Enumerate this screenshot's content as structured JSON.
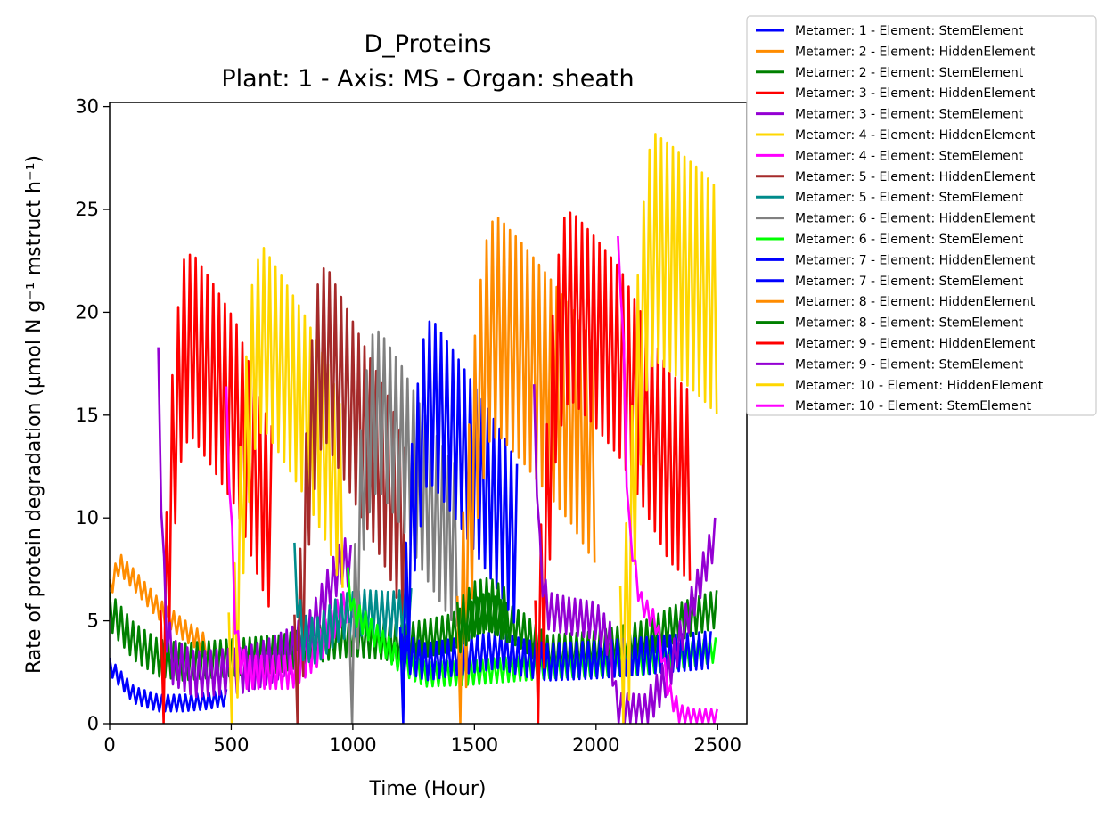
{
  "chart_data": {
    "type": "line",
    "title_line1": "D_Proteins",
    "title_line2": "Plant: 1 - Axis: MS - Organ: sheath",
    "xlabel": "Time (Hour)",
    "ylabel": "Rate of protein degradation (µmol N g⁻¹ mstruct h⁻¹)",
    "xlim": [
      0,
      2620
    ],
    "ylim": [
      0,
      30.2
    ],
    "xticks": [
      0,
      500,
      1000,
      1500,
      2000,
      2500
    ],
    "yticks": [
      0,
      5,
      10,
      15,
      20,
      25,
      30
    ],
    "legend_position": "outside-top-right",
    "series": [
      {
        "name": "Metamer: 1 - Element: StemElement",
        "color": "#0000ff",
        "start": 0,
        "end": 490,
        "amp": 0.4,
        "points": [
          [
            0,
            2.8
          ],
          [
            100,
            1.4
          ],
          [
            200,
            1.0
          ],
          [
            300,
            1.0
          ],
          [
            400,
            1.1
          ],
          [
            490,
            1.3
          ]
        ]
      },
      {
        "name": "Metamer: 2 - Element: HiddenElement",
        "color": "#ff8c00",
        "start": 0,
        "end": 400,
        "amp": 0.5,
        "points": [
          [
            0,
            6.5
          ],
          [
            40,
            7.8
          ],
          [
            100,
            7.0
          ],
          [
            200,
            5.6
          ],
          [
            300,
            4.6
          ],
          [
            400,
            3.8
          ]
        ]
      },
      {
        "name": "Metamer: 2 - Element: StemElement",
        "color": "#008000",
        "start": 0,
        "end": 2500,
        "amp": 0.9,
        "points": [
          [
            0,
            5.5
          ],
          [
            100,
            4.0
          ],
          [
            200,
            3.2
          ],
          [
            300,
            3.0
          ],
          [
            500,
            3.2
          ],
          [
            700,
            3.4
          ],
          [
            900,
            4.0
          ],
          [
            1000,
            4.2
          ],
          [
            1200,
            3.9
          ],
          [
            1400,
            4.4
          ],
          [
            1550,
            5.5
          ],
          [
            1700,
            4.5
          ],
          [
            1800,
            3.4
          ],
          [
            2000,
            3.6
          ],
          [
            2200,
            4.1
          ],
          [
            2350,
            5.0
          ],
          [
            2500,
            5.6
          ]
        ]
      },
      {
        "name": "Metamer: 3 - Element: HiddenElement",
        "color": "#ff0000",
        "start": 210,
        "end": 670,
        "amp": 4.5,
        "points": [
          [
            210,
            1.0
          ],
          [
            235,
            6.0
          ],
          [
            260,
            13.0
          ],
          [
            300,
            18.0
          ],
          [
            340,
            18.4
          ],
          [
            420,
            17.0
          ],
          [
            520,
            15.0
          ],
          [
            600,
            12.0
          ],
          [
            660,
            10.0
          ]
        ]
      },
      {
        "name": "Metamer: 3 - Element: StemElement",
        "color": "#9400d3",
        "start": 200,
        "end": 1000,
        "amp": 1.1,
        "points": [
          [
            200,
            17.2
          ],
          [
            215,
            10.0
          ],
          [
            230,
            5.0
          ],
          [
            260,
            3.0
          ],
          [
            350,
            2.4
          ],
          [
            450,
            2.5
          ],
          [
            550,
            2.6
          ],
          [
            650,
            3.0
          ],
          [
            750,
            3.6
          ],
          [
            830,
            4.5
          ],
          [
            900,
            6.5
          ],
          [
            960,
            8.0
          ],
          [
            1000,
            7.5
          ]
        ]
      },
      {
        "name": "Metamer: 4 - Element: HiddenElement",
        "color": "#ffd700",
        "start": 490,
        "end": 960,
        "amp": 4.4,
        "points": [
          [
            490,
            1.0
          ],
          [
            520,
            4.0
          ],
          [
            545,
            11.0
          ],
          [
            590,
            17.5
          ],
          [
            630,
            18.8
          ],
          [
            700,
            17.5
          ],
          [
            800,
            15.5
          ],
          [
            900,
            13.0
          ],
          [
            950,
            11.0
          ]
        ]
      },
      {
        "name": "Metamer: 4 - Element: StemElement",
        "color": "#ff00ff",
        "start": 480,
        "end": 1000,
        "amp": 0.8,
        "points": [
          [
            480,
            15.6
          ],
          [
            500,
            10.0
          ],
          [
            520,
            4.0
          ],
          [
            560,
            2.5
          ],
          [
            650,
            2.5
          ],
          [
            750,
            2.5
          ],
          [
            850,
            3.5
          ],
          [
            950,
            5.5
          ],
          [
            1000,
            6.0
          ]
        ]
      },
      {
        "name": "Metamer: 5 - Element: HiddenElement",
        "color": "#a52a2a",
        "start": 760,
        "end": 1220,
        "amp": 4.3,
        "points": [
          [
            760,
            1.0
          ],
          [
            790,
            5.0
          ],
          [
            820,
            13.0
          ],
          [
            860,
            17.5
          ],
          [
            890,
            18.0
          ],
          [
            950,
            16.5
          ],
          [
            1050,
            14.0
          ],
          [
            1150,
            11.5
          ],
          [
            1220,
            9.0
          ]
        ]
      },
      {
        "name": "Metamer: 5 - Element: StemElement",
        "color": "#008b8b",
        "start": 760,
        "end": 1250,
        "amp": 1.1,
        "points": [
          [
            760,
            7.7
          ],
          [
            790,
            4.2
          ],
          [
            850,
            4.0
          ],
          [
            950,
            5.2
          ],
          [
            1050,
            5.4
          ],
          [
            1150,
            5.3
          ],
          [
            1250,
            5.5
          ]
        ]
      },
      {
        "name": "Metamer: 6 - Element: HiddenElement",
        "color": "#808080",
        "start": 985,
        "end": 1440,
        "amp": 3.9,
        "points": [
          [
            985,
            1.0
          ],
          [
            1010,
            5.0
          ],
          [
            1040,
            12.0
          ],
          [
            1080,
            15.0
          ],
          [
            1110,
            15.2
          ],
          [
            1200,
            13.5
          ],
          [
            1300,
            11.0
          ],
          [
            1400,
            9.0
          ],
          [
            1440,
            8.5
          ]
        ]
      },
      {
        "name": "Metamer: 6 - Element: StemElement",
        "color": "#00ff00",
        "start": 980,
        "end": 2500,
        "amp": 0.6,
        "points": [
          [
            980,
            7.0
          ],
          [
            1000,
            5.5
          ],
          [
            1100,
            4.2
          ],
          [
            1200,
            3.0
          ],
          [
            1300,
            2.4
          ],
          [
            1500,
            2.5
          ],
          [
            1700,
            2.7
          ],
          [
            1800,
            2.8
          ],
          [
            2000,
            2.9
          ],
          [
            2200,
            3.0
          ],
          [
            2500,
            3.6
          ]
        ]
      },
      {
        "name": "Metamer: 7 - Element: HiddenElement",
        "color": "#0000ff",
        "start": 1195,
        "end": 1680,
        "amp": 4.0,
        "points": [
          [
            1195,
            0.7
          ],
          [
            1215,
            4.0
          ],
          [
            1250,
            11.0
          ],
          [
            1300,
            15.5
          ],
          [
            1330,
            15.6
          ],
          [
            1420,
            14.0
          ],
          [
            1520,
            12.0
          ],
          [
            1620,
            10.0
          ],
          [
            1680,
            8.5
          ]
        ]
      },
      {
        "name": "Metamer: 7 - Element: StemElement",
        "color": "#0000ff",
        "start": 1200,
        "end": 2480,
        "amp": 0.9,
        "points": [
          [
            1200,
            3.5
          ],
          [
            1300,
            3.0
          ],
          [
            1450,
            3.3
          ],
          [
            1600,
            3.6
          ],
          [
            1700,
            3.2
          ],
          [
            1800,
            3.0
          ],
          [
            2000,
            3.1
          ],
          [
            2200,
            3.3
          ],
          [
            2480,
            3.6
          ]
        ]
      },
      {
        "name": "Metamer: 8 - Element: HiddenElement",
        "color": "#ff8c00",
        "start": 1430,
        "end": 2000,
        "amp": 5.3,
        "points": [
          [
            1430,
            0.9
          ],
          [
            1460,
            6.0
          ],
          [
            1510,
            15.0
          ],
          [
            1560,
            19.0
          ],
          [
            1600,
            19.3
          ],
          [
            1700,
            18.0
          ],
          [
            1800,
            16.5
          ],
          [
            1900,
            15.0
          ],
          [
            2000,
            13.0
          ]
        ]
      },
      {
        "name": "Metamer: 8 - Element: StemElement",
        "color": "#008000",
        "start": 1430,
        "end": 1640,
        "amp": 1.3,
        "points": [
          [
            1430,
            4.6
          ],
          [
            1500,
            5.6
          ],
          [
            1560,
            5.8
          ],
          [
            1640,
            5.2
          ]
        ]
      },
      {
        "name": "Metamer: 9 - Element: HiddenElement",
        "color": "#ff0000",
        "start": 1750,
        "end": 2390,
        "amp": 4.6,
        "points": [
          [
            1750,
            1.4
          ],
          [
            1780,
            6.0
          ],
          [
            1830,
            17.0
          ],
          [
            1870,
            20.0
          ],
          [
            1900,
            20.3
          ],
          [
            2000,
            19.0
          ],
          [
            2100,
            17.5
          ],
          [
            2200,
            15.0
          ],
          [
            2300,
            12.5
          ],
          [
            2390,
            11.5
          ]
        ]
      },
      {
        "name": "Metamer: 9 - Element: StemElement",
        "color": "#9400d3",
        "start": 1745,
        "end": 2500,
        "amp": 0.9,
        "points": [
          [
            1745,
            15.6
          ],
          [
            1770,
            8.0
          ],
          [
            1800,
            5.5
          ],
          [
            1900,
            5.2
          ],
          [
            2000,
            5.0
          ],
          [
            2060,
            4.0
          ],
          [
            2080,
            1.2
          ],
          [
            2100,
            0.6
          ],
          [
            2200,
            0.5
          ],
          [
            2300,
            2.5
          ],
          [
            2400,
            6.0
          ],
          [
            2500,
            9.5
          ]
        ]
      },
      {
        "name": "Metamer: 10 - Element: HiddenElement",
        "color": "#ffd700",
        "start": 2100,
        "end": 2500,
        "amp": 5.5,
        "points": [
          [
            2100,
            1.2
          ],
          [
            2130,
            5.0
          ],
          [
            2170,
            16.0
          ],
          [
            2210,
            22.0
          ],
          [
            2240,
            23.2
          ],
          [
            2320,
            22.5
          ],
          [
            2420,
            21.5
          ],
          [
            2500,
            20.5
          ]
        ]
      },
      {
        "name": "Metamer: 10 - Element: StemElement",
        "color": "#ff00ff",
        "start": 2090,
        "end": 2500,
        "amp": 0.5,
        "points": [
          [
            2090,
            23.2
          ],
          [
            2110,
            20.0
          ],
          [
            2130,
            10.0
          ],
          [
            2180,
            6.0
          ],
          [
            2250,
            4.8
          ],
          [
            2300,
            1.5
          ],
          [
            2350,
            0.4
          ],
          [
            2400,
            0.2
          ],
          [
            2500,
            0.2
          ]
        ]
      }
    ]
  }
}
